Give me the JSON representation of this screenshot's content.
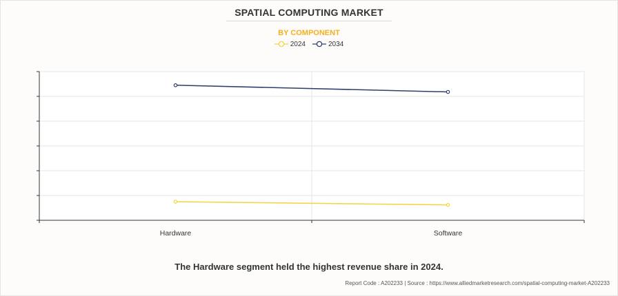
{
  "header": {
    "title": "SPATIAL COMPUTING MARKET",
    "subtitle": "BY COMPONENT"
  },
  "chart_data": {
    "type": "line",
    "categories": [
      "Hardware",
      "Software"
    ],
    "series": [
      {
        "name": "2024",
        "color": "#f5d33c",
        "values": [
          7.5,
          6.2
        ]
      },
      {
        "name": "2034",
        "color": "#2e3d6b",
        "values": [
          54.5,
          51.8
        ]
      }
    ],
    "ylim": [
      0,
      60
    ],
    "grid": true,
    "legend": "top-center",
    "y_tick_labels_shown": false
  },
  "caption": "The Hardware segment held the highest revenue share in 2024.",
  "footer": {
    "text": "Report Code : A202233  |  Source : https://www.alliedmarketresearch.com/spatial-computing-market-A202233"
  }
}
